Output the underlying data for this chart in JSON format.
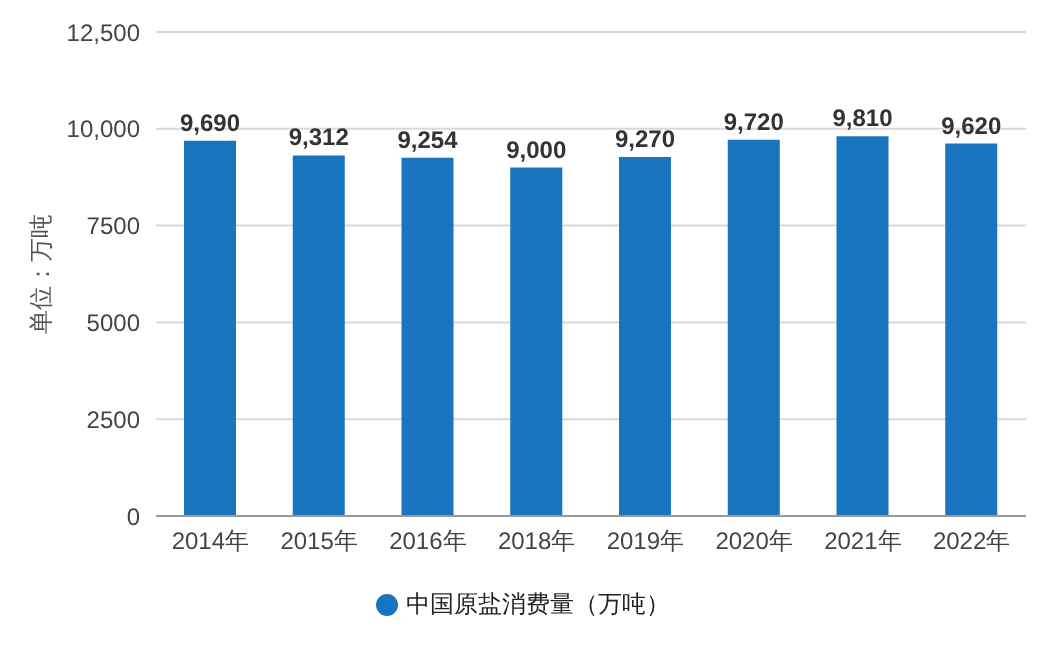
{
  "chart_data": {
    "type": "bar",
    "ylabel": "单位：万吨",
    "categories": [
      "2014年",
      "2015年",
      "2016年",
      "2018年",
      "2019年",
      "2020年",
      "2021年",
      "2022年"
    ],
    "series": [
      {
        "name": "中国原盐消费量（万吨）",
        "color": "#1a75c0",
        "values": [
          9690,
          9312,
          9254,
          9000,
          9270,
          9720,
          9810,
          9620
        ],
        "value_labels": [
          "9,690",
          "9,312",
          "9,254",
          "9,000",
          "9,270",
          "9,720",
          "9,810",
          "9,620"
        ]
      }
    ],
    "ylim": [
      0,
      12500
    ],
    "yticks": [
      0,
      2500,
      5000,
      7500,
      {
        "value": 10000,
        "label": "10,000"
      },
      {
        "value": 12500,
        "label": "12,500"
      }
    ],
    "grid": "y",
    "legend": "bottom"
  }
}
